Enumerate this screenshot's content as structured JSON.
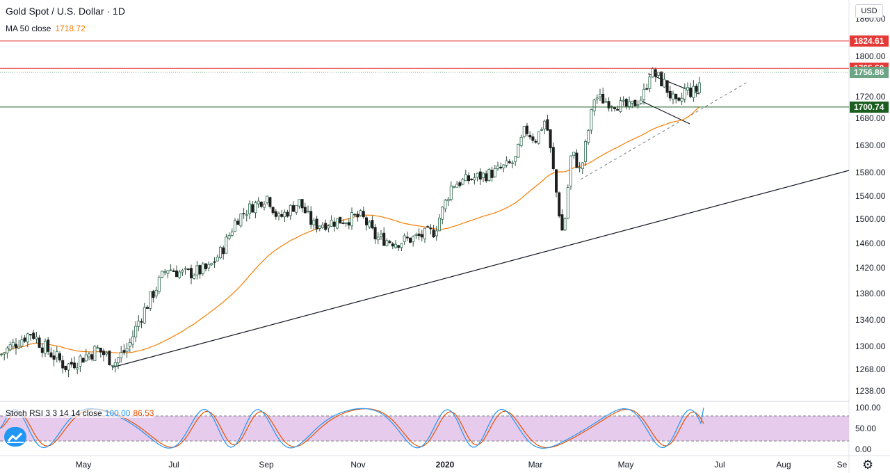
{
  "header": {
    "symbol": "Gold Spot / U.S. Dollar · 1D",
    "ma_label": "MA 50 close",
    "ma_value": "1718.72",
    "currency_button": "USD"
  },
  "stoch": {
    "label": "Stoch RSI 3 3 14 14 close",
    "k_value": "100.00",
    "d_value": "86.53",
    "axis_labels": [
      "100.00",
      "50.00",
      "0.00"
    ]
  },
  "price_axis": {
    "tick_labels": [
      "1860.00",
      "1800.00",
      "1760.00",
      "1720.00",
      "1680.00",
      "1630.00",
      "1580.00",
      "1540.00",
      "1500.00",
      "1460.00",
      "1420.00",
      "1380.00",
      "1340.00",
      "1300.00",
      "1268.00",
      "1238.00"
    ]
  },
  "price_tags": [
    {
      "value": "1824.61",
      "color": "#e53935"
    },
    {
      "value": "1765.50",
      "color": "#e53935"
    },
    {
      "value": "1756.86",
      "color": "#6ba583"
    },
    {
      "value": "1700.74",
      "color": "#1b5e20"
    }
  ],
  "time_axis": {
    "labels": [
      "May",
      "Jul",
      "Sep",
      "Nov",
      "2020",
      "Mar",
      "May",
      "Jul",
      "Aug",
      "Se"
    ]
  },
  "colors": {
    "up": "#26a69a",
    "down": "#ef5350",
    "candle_body_up": "#ffffff",
    "candle_border": "#2d6a4f",
    "ma": "#f57c00",
    "stoch_k": "#2196f3",
    "stoch_d": "#e65100",
    "stoch_band": "#e1bee7"
  },
  "chart_data": {
    "type": "candlestick",
    "series": [
      {
        "name": "Gold Spot / U.S. Dollar",
        "kind": "ohlc-close",
        "dates": [
          "2019-03",
          "2019-04",
          "2019-05",
          "2019-06",
          "2019-07",
          "2019-08",
          "2019-09",
          "2019-10",
          "2019-11",
          "2019-12",
          "2020-01",
          "2020-02",
          "2020-03",
          "2020-04",
          "2020-05",
          "2020-06"
        ],
        "values": [
          1300,
          1288,
          1282,
          1409,
          1421,
          1520,
          1480,
          1514,
          1460,
          1517,
          1588,
          1585,
          1470,
          1690,
          1730,
          1756
        ]
      },
      {
        "name": "MA 50 close",
        "values": [
          1300,
          1300,
          1290,
          1340,
          1400,
          1460,
          1500,
          1495,
          1480,
          1480,
          1520,
          1575,
          1590,
          1640,
          1690,
          1718
        ]
      }
    ],
    "ylim": [
      1220,
      1880
    ],
    "horizontal_levels": [
      1824.61,
      1765.5,
      1700.74
    ],
    "last_price": 1756.86
  }
}
